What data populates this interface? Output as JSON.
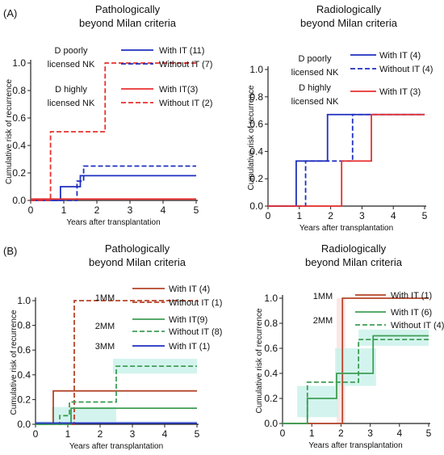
{
  "figure": {
    "panel_labels": [
      "(A)",
      "(B)"
    ]
  },
  "colors": {
    "blue": "#1f2fbf",
    "red": "#e8312f",
    "brown": "#b5452a",
    "green": "#3f9e55",
    "band_blue": "#cfe8fb",
    "band_red": "#fbe0e0",
    "band_green": "#c8f1ea"
  },
  "chart_data": [
    {
      "id": "A-left",
      "type": "line",
      "step": true,
      "title": "Pathologically beyond Milan criteria",
      "title_lines": [
        "Pathologically",
        "beyond Milan criteria"
      ],
      "xlabel": "Years after transplantation",
      "ylabel": "Cumulative risk of recurrence",
      "xlim": [
        0,
        5
      ],
      "ylim": [
        0,
        1.0
      ],
      "xticks": [
        "0",
        "1",
        "2",
        "3",
        "4",
        "5"
      ],
      "yticks": [
        "0.0",
        "0.2",
        "0.4",
        "0.6",
        "0.8",
        "1.0"
      ],
      "legend_groups": [
        {
          "label_lines": [
            "D poorly",
            "licensed NK"
          ],
          "entries": [
            "With IT (11)",
            "Without IT (7)"
          ]
        },
        {
          "label_lines": [
            "D highly",
            "licensed NK"
          ],
          "entries": [
            "With IT(3)",
            "Without IT (2)"
          ]
        }
      ],
      "series": [
        {
          "name": "D poorly licensed NK With IT (11)",
          "color": "blue",
          "dash": false,
          "x": [
            0,
            0.9,
            1.5,
            5
          ],
          "y": [
            0,
            0.1,
            0.18,
            0.18
          ]
        },
        {
          "name": "D poorly licensed NK Without IT (7)",
          "color": "blue",
          "dash": true,
          "x": [
            0,
            1.4,
            1.6,
            5
          ],
          "y": [
            0,
            0.14,
            0.25,
            0.25
          ]
        },
        {
          "name": "D highly licensed NK With IT(3)",
          "color": "red",
          "dash": false,
          "x": [
            0,
            5
          ],
          "y": [
            0.01,
            0.01
          ]
        },
        {
          "name": "D highly licensed NK Without IT (2)",
          "color": "red",
          "dash": true,
          "x": [
            0,
            0.6,
            2.25,
            5
          ],
          "y": [
            0,
            0.5,
            1.0,
            1.0
          ]
        }
      ]
    },
    {
      "id": "A-right",
      "type": "line",
      "step": true,
      "title": "Radiologically beyond Milan criteria",
      "title_lines": [
        "Radiologically",
        "beyond Milan criteria"
      ],
      "xlabel": "Years after transplantation",
      "ylabel": "Cumulative risk of recurrence",
      "xlim": [
        0,
        5
      ],
      "ylim": [
        0,
        1.0
      ],
      "xticks": [
        "0",
        "1",
        "2",
        "3",
        "4",
        "5"
      ],
      "yticks": [
        "0.0",
        "0.2",
        "0.4",
        "0.6",
        "0.8",
        "1.0"
      ],
      "legend_groups": [
        {
          "label_lines": [
            "D poorly",
            "licensed NK"
          ],
          "entries": [
            "With IT (4)",
            "Without IT (4)"
          ]
        },
        {
          "label_lines": [
            "D highly",
            "licensed NK"
          ],
          "entries": [
            "With IT (3)"
          ]
        }
      ],
      "series": [
        {
          "name": "D poorly licensed NK With IT (4)",
          "color": "blue",
          "dash": false,
          "x": [
            0,
            0.9,
            1.9,
            5
          ],
          "y": [
            0,
            0.33,
            0.67,
            0.67
          ]
        },
        {
          "name": "D poorly licensed NK Without IT (4)",
          "color": "blue",
          "dash": true,
          "x": [
            0,
            1.2,
            2.7,
            5
          ],
          "y": [
            0,
            0.33,
            0.67,
            0.67
          ]
        },
        {
          "name": "D highly licensed NK With IT (3)",
          "color": "red",
          "dash": false,
          "x": [
            0,
            2.35,
            3.3,
            5
          ],
          "y": [
            0,
            0.33,
            0.67,
            0.67
          ]
        }
      ]
    },
    {
      "id": "B-left",
      "type": "line",
      "step": true,
      "title": "Pathologically beyond Milan criteria",
      "title_lines": [
        "Pathologically",
        "beyond Milan criteria"
      ],
      "xlabel": "Years after transplantation",
      "ylabel": "Cumulative risk of recurrence",
      "xlim": [
        0,
        5
      ],
      "ylim": [
        0,
        1.0
      ],
      "xticks": [
        "0",
        "1",
        "2",
        "3",
        "4",
        "5"
      ],
      "yticks": [
        "0.0",
        "0.2",
        "0.4",
        "0.6",
        "0.8",
        "1.0"
      ],
      "legend_groups": [
        {
          "label_lines": [
            "1MM"
          ],
          "entries": [
            "With IT (4)",
            "Without IT (1)"
          ]
        },
        {
          "label_lines": [
            "2MM"
          ],
          "entries": [
            "With IT(9)",
            "Without IT (8)"
          ]
        },
        {
          "label_lines": [
            "3MM"
          ],
          "entries": [
            "With IT (1)"
          ]
        }
      ],
      "series": [
        {
          "name": "1MM With IT (4)",
          "color": "brown",
          "dash": false,
          "x": [
            0,
            0.55,
            5
          ],
          "y": [
            0,
            0.27,
            0.27
          ]
        },
        {
          "name": "1MM Without IT (1)",
          "color": "brown",
          "dash": true,
          "x": [
            0,
            1.2,
            5
          ],
          "y": [
            0,
            1.0,
            1.0
          ]
        },
        {
          "name": "2MM With IT(9)",
          "color": "green",
          "dash": false,
          "x": [
            0,
            1.1,
            5
          ],
          "y": [
            0,
            0.13,
            0.13
          ]
        },
        {
          "name": "2MM Without IT (8)",
          "color": "green",
          "dash": true,
          "x": [
            0,
            0.75,
            1.05,
            2.5,
            5
          ],
          "y": [
            0,
            0.07,
            0.18,
            0.47,
            0.47
          ]
        },
        {
          "name": "3MM With IT (1)",
          "color": "blue",
          "dash": false,
          "x": [
            0,
            5
          ],
          "y": [
            0.01,
            0.01
          ]
        }
      ]
    },
    {
      "id": "B-right",
      "type": "line",
      "step": true,
      "title": "Radiologically beyond Milan criteria",
      "title_lines": [
        "Radiologically",
        "beyond Milan criteria"
      ],
      "xlabel": "Years after transplantation",
      "ylabel": "Cumulative risk of recurrence",
      "xlim": [
        0,
        5
      ],
      "ylim": [
        0,
        1.0
      ],
      "xticks": [
        "0",
        "1",
        "2",
        "3",
        "4",
        "5"
      ],
      "yticks": [
        "0.0",
        "0.2",
        "0.4",
        "0.6",
        "0.8",
        "1.0"
      ],
      "legend_groups": [
        {
          "label_lines": [
            "1MM"
          ],
          "entries": [
            "With IT (1)"
          ]
        },
        {
          "label_lines": [
            "2MM"
          ],
          "entries": [
            "With IT (6)",
            "Without IT (4)"
          ]
        }
      ],
      "series": [
        {
          "name": "1MM With IT (1)",
          "color": "brown",
          "dash": false,
          "x": [
            0,
            2.05,
            5
          ],
          "y": [
            0,
            1.0,
            1.0
          ]
        },
        {
          "name": "2MM With IT (6)",
          "color": "green",
          "dash": false,
          "x": [
            0,
            0.85,
            1.85,
            3.1,
            5
          ],
          "y": [
            0,
            0.2,
            0.4,
            0.7,
            0.7
          ]
        },
        {
          "name": "2MM Without IT (4)",
          "color": "green",
          "dash": true,
          "x": [
            0,
            0.85,
            2.6,
            5
          ],
          "y": [
            0,
            0.33,
            0.67,
            0.67
          ]
        }
      ]
    }
  ]
}
